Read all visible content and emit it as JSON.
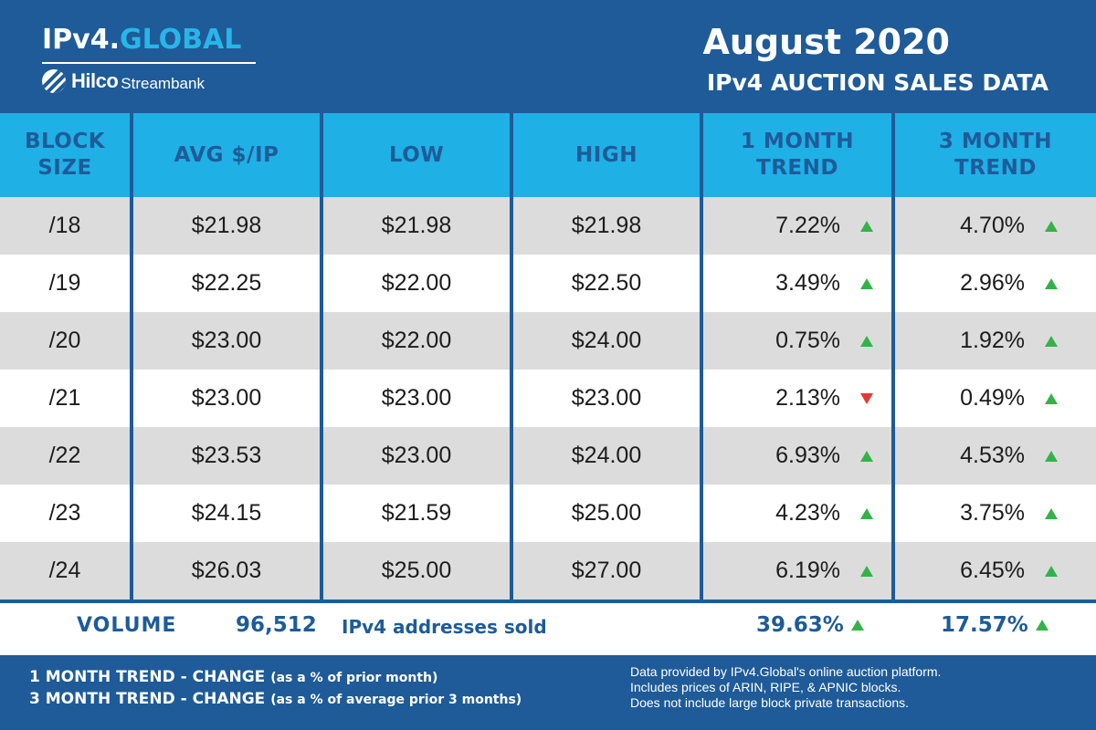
{
  "brand": {
    "name_prefix": "IPv4.",
    "name_accent": "GLOBAL",
    "partner_name": "Hilco",
    "partner_sub": "Streambank"
  },
  "title": {
    "main": "August 2020",
    "sub": "IPv4 AUCTION SALES DATA"
  },
  "colors": {
    "header": "#1e5b98",
    "table_header": "#1fb0e6",
    "up_arrow": "#34b249",
    "down_arrow": "#e53935"
  },
  "chart_data": {
    "type": "table",
    "columns": [
      "BLOCK SIZE",
      "AVG $/IP",
      "LOW",
      "HIGH",
      "1 MONTH TREND",
      "3 MONTH TREND"
    ],
    "rows": [
      {
        "block": "/18",
        "avg": "$21.98",
        "low": "$21.98",
        "high": "$21.98",
        "m1": "7.22%",
        "m1_dir": "up",
        "m3": "4.70%",
        "m3_dir": "up"
      },
      {
        "block": "/19",
        "avg": "$22.25",
        "low": "$22.00",
        "high": "$22.50",
        "m1": "3.49%",
        "m1_dir": "up",
        "m3": "2.96%",
        "m3_dir": "up"
      },
      {
        "block": "/20",
        "avg": "$23.00",
        "low": "$22.00",
        "high": "$24.00",
        "m1": "0.75%",
        "m1_dir": "up",
        "m3": "1.92%",
        "m3_dir": "up"
      },
      {
        "block": "/21",
        "avg": "$23.00",
        "low": "$23.00",
        "high": "$23.00",
        "m1": "2.13%",
        "m1_dir": "down",
        "m3": "0.49%",
        "m3_dir": "up"
      },
      {
        "block": "/22",
        "avg": "$23.53",
        "low": "$23.00",
        "high": "$24.00",
        "m1": "6.93%",
        "m1_dir": "up",
        "m3": "4.53%",
        "m3_dir": "up"
      },
      {
        "block": "/23",
        "avg": "$24.15",
        "low": "$21.59",
        "high": "$25.00",
        "m1": "4.23%",
        "m1_dir": "up",
        "m3": "3.75%",
        "m3_dir": "up"
      },
      {
        "block": "/24",
        "avg": "$26.03",
        "low": "$25.00",
        "high": "$27.00",
        "m1": "6.19%",
        "m1_dir": "up",
        "m3": "6.45%",
        "m3_dir": "up"
      }
    ],
    "volume": {
      "label": "VOLUME",
      "count": "96,512",
      "text": "IPv4 addresses sold",
      "m1": "39.63%",
      "m1_dir": "up",
      "m3": "17.57%",
      "m3_dir": "up"
    }
  },
  "footer": {
    "line1_bold": "1 MONTH TREND - CHANGE",
    "line1_small": "(as a % of prior month)",
    "line2_bold": "3 MONTH TREND - CHANGE",
    "line2_small": "(as a % of average prior 3 months)",
    "note1": "Data provided by IPv4.Global's online auction platform.",
    "note2": "Includes prices of ARIN, RIPE, & APNIC blocks.",
    "note3": "Does not include large block private transactions."
  }
}
